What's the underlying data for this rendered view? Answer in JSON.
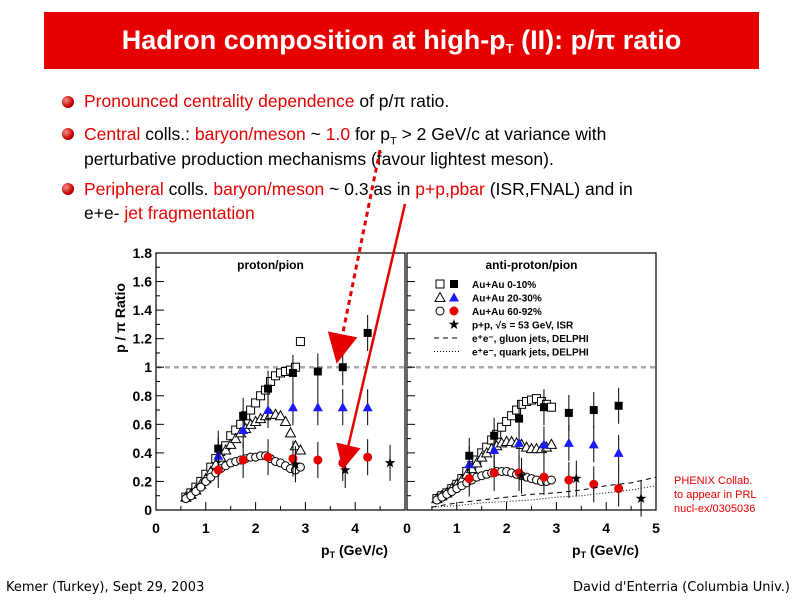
{
  "slide": {
    "title_main": "Hadron composition at high-p",
    "title_sub": "T",
    "title_tail": " (II): p/π ratio",
    "bullets": [
      {
        "parts": [
          {
            "t": "Pronounced centrality dependence",
            "red": true
          },
          {
            "t": " of p/π ratio.",
            "red": false
          }
        ]
      },
      {
        "parts": [
          {
            "t": "Central",
            "red": true
          },
          {
            "t": " colls.: ",
            "red": false
          },
          {
            "t": "baryon/meson",
            "red": true
          },
          {
            "t": " ~ ",
            "red": false
          },
          {
            "t": "1.0",
            "red": true
          },
          {
            "t": " for p",
            "red": false
          },
          {
            "t": "T",
            "red": false,
            "sub": true
          },
          {
            "t": " > 2 GeV/c at variance with",
            "red": false
          }
        ],
        "line2": "perturbative production mechanisms (favour lightest meson)."
      },
      {
        "parts": [
          {
            "t": "Peripheral",
            "red": true
          },
          {
            "t": " colls. ",
            "red": false
          },
          {
            "t": "baryon/meson",
            "red": true
          },
          {
            "t": " ~ 0.3  as in ",
            "red": false
          },
          {
            "t": "p+p,pbar",
            "red": true
          },
          {
            "t": " (ISR,FNAL) and in",
            "red": false
          }
        ],
        "line2_parts": [
          {
            "t": "e+e- ",
            "red": false
          },
          {
            "t": "jet fragmentation",
            "red": true
          }
        ]
      }
    ],
    "footer_left": "Kemer (Turkey), Sept 29, 2003",
    "footer_right": "David d'Enterria (Columbia Univ.)",
    "citation": [
      "PHENIX Collab.",
      "to appear in PRL",
      "nucl-ex/0305036"
    ]
  },
  "colors": {
    "title_bg": "#e60000",
    "accent": "#e60000",
    "cent0_10": "#000000",
    "cent20_30": "#1a1aff",
    "cent60_92": "#e60000",
    "isr": "#000000"
  },
  "chart_data": [
    {
      "type": "scatter",
      "title": "proton/pion",
      "ylabel": "p / π  Ratio",
      "xlabel": "pT (GeV/c)",
      "xlim": [
        0,
        5
      ],
      "ylim": [
        0,
        1.8
      ],
      "xticks": [
        "0",
        "1",
        "2",
        "3",
        "4"
      ],
      "yticks": [
        "0",
        "0.2",
        "0.4",
        "0.6",
        "0.8",
        "1",
        "1.2",
        "1.4",
        "1.6",
        "1.8"
      ],
      "reference_line": 1.0,
      "series": [
        {
          "name": "Au+Au 0-10% (open)",
          "marker": "open-square",
          "color": "#000000",
          "x": [
            0.6,
            0.7,
            0.8,
            0.9,
            1.0,
            1.1,
            1.2,
            1.3,
            1.4,
            1.5,
            1.6,
            1.7,
            1.8,
            1.9,
            2.0,
            2.1,
            2.2,
            2.3,
            2.4,
            2.5,
            2.6,
            2.7,
            2.8,
            2.9
          ],
          "y": [
            0.09,
            0.12,
            0.16,
            0.2,
            0.25,
            0.3,
            0.36,
            0.41,
            0.45,
            0.52,
            0.56,
            0.6,
            0.66,
            0.7,
            0.75,
            0.8,
            0.84,
            0.9,
            0.94,
            0.96,
            0.97,
            0.98,
            1.0,
            1.18
          ]
        },
        {
          "name": "Au+Au 0-10% (filled)",
          "marker": "filled-square",
          "color": "#000000",
          "x": [
            1.25,
            1.75,
            2.25,
            2.75,
            3.25,
            3.75,
            4.25
          ],
          "y": [
            0.43,
            0.66,
            0.85,
            0.96,
            0.97,
            1.0,
            1.24
          ]
        },
        {
          "name": "Au+Au 20-30% (open)",
          "marker": "open-triangle",
          "color": "#000000",
          "x": [
            0.6,
            0.7,
            0.8,
            0.9,
            1.0,
            1.1,
            1.2,
            1.3,
            1.4,
            1.5,
            1.6,
            1.7,
            1.8,
            1.9,
            2.0,
            2.1,
            2.2,
            2.3,
            2.4,
            2.5,
            2.6,
            2.7,
            2.8,
            2.9
          ],
          "y": [
            0.09,
            0.11,
            0.14,
            0.18,
            0.22,
            0.27,
            0.32,
            0.37,
            0.42,
            0.46,
            0.5,
            0.54,
            0.57,
            0.6,
            0.62,
            0.64,
            0.66,
            0.67,
            0.67,
            0.66,
            0.62,
            0.54,
            0.45,
            0.42
          ]
        },
        {
          "name": "Au+Au 20-30% (filled)",
          "marker": "filled-triangle",
          "color": "#1a1aff",
          "x": [
            1.25,
            1.75,
            2.25,
            2.75,
            3.25,
            3.75,
            4.25
          ],
          "y": [
            0.38,
            0.56,
            0.7,
            0.72,
            0.72,
            0.72,
            0.72
          ]
        },
        {
          "name": "Au+Au 60-92% (open)",
          "marker": "open-circle",
          "color": "#000000",
          "x": [
            0.6,
            0.7,
            0.8,
            0.9,
            1.0,
            1.1,
            1.2,
            1.3,
            1.4,
            1.5,
            1.6,
            1.7,
            1.8,
            1.9,
            2.0,
            2.1,
            2.2,
            2.3,
            2.4,
            2.5,
            2.6,
            2.7,
            2.8,
            2.9
          ],
          "y": [
            0.08,
            0.1,
            0.13,
            0.16,
            0.2,
            0.23,
            0.26,
            0.29,
            0.31,
            0.33,
            0.34,
            0.35,
            0.36,
            0.37,
            0.37,
            0.38,
            0.38,
            0.36,
            0.34,
            0.33,
            0.31,
            0.29,
            0.28,
            0.3
          ]
        },
        {
          "name": "Au+Au 60-92% (filled)",
          "marker": "filled-circle",
          "color": "#e60000",
          "x": [
            1.25,
            1.75,
            2.25,
            2.75,
            3.25,
            3.75,
            4.25
          ],
          "y": [
            0.28,
            0.35,
            0.37,
            0.36,
            0.35,
            0.33,
            0.37
          ]
        },
        {
          "name": "p+p ISR",
          "marker": "star",
          "color": "#000000",
          "x": [
            2.8,
            3.8,
            4.7
          ],
          "y": [
            0.32,
            0.28,
            0.33
          ]
        }
      ]
    },
    {
      "type": "scatter",
      "title": "anti-proton/pion",
      "xlabel": "pT (GeV/c)",
      "xlim": [
        0,
        5
      ],
      "ylim": [
        0,
        1.8
      ],
      "xticks": [
        "0",
        "1",
        "2",
        "3",
        "4",
        "5"
      ],
      "reference_line": 1.0,
      "legend": [
        {
          "label": "Au+Au 0-10%",
          "markers": [
            "open-square",
            "filled-square"
          ]
        },
        {
          "label": "Au+Au 20-30%",
          "markers": [
            "open-triangle",
            "filled-triangle"
          ]
        },
        {
          "label": "Au+Au 60-92%",
          "markers": [
            "open-circle",
            "filled-circle"
          ]
        },
        {
          "label": "p+p, √s = 53 GeV, ISR",
          "markers": [
            "star"
          ]
        },
        {
          "label": "e⁺e⁻, gluon jets, DELPHI",
          "markers": [
            "dash"
          ]
        },
        {
          "label": "e⁺e⁻, quark jets, DELPHI",
          "markers": [
            "dot"
          ]
        }
      ],
      "series": [
        {
          "name": "Au+Au 0-10% (open)",
          "marker": "open-square",
          "color": "#000000",
          "x": [
            0.6,
            0.7,
            0.8,
            0.9,
            1.0,
            1.1,
            1.2,
            1.3,
            1.4,
            1.5,
            1.6,
            1.7,
            1.8,
            1.9,
            2.0,
            2.1,
            2.2,
            2.3,
            2.4,
            2.5,
            2.6,
            2.7,
            2.8,
            2.9
          ],
          "y": [
            0.08,
            0.1,
            0.12,
            0.15,
            0.18,
            0.22,
            0.27,
            0.31,
            0.35,
            0.4,
            0.44,
            0.49,
            0.53,
            0.58,
            0.62,
            0.66,
            0.7,
            0.74,
            0.76,
            0.77,
            0.78,
            0.76,
            0.74,
            0.72
          ]
        },
        {
          "name": "Au+Au 0-10% (filled)",
          "marker": "filled-square",
          "color": "#000000",
          "x": [
            1.25,
            1.75,
            2.25,
            2.75,
            3.25,
            3.75,
            4.25
          ],
          "y": [
            0.38,
            0.52,
            0.64,
            0.72,
            0.68,
            0.7,
            0.73
          ]
        },
        {
          "name": "Au+Au 20-30% (open)",
          "marker": "open-triangle",
          "color": "#000000",
          "x": [
            0.6,
            0.7,
            0.8,
            0.9,
            1.0,
            1.1,
            1.2,
            1.3,
            1.4,
            1.5,
            1.6,
            1.7,
            1.8,
            1.9,
            2.0,
            2.1,
            2.2,
            2.3,
            2.4,
            2.5,
            2.6,
            2.7,
            2.8,
            2.9
          ],
          "y": [
            0.08,
            0.1,
            0.12,
            0.15,
            0.18,
            0.21,
            0.25,
            0.29,
            0.33,
            0.37,
            0.4,
            0.43,
            0.45,
            0.47,
            0.48,
            0.48,
            0.47,
            0.46,
            0.44,
            0.43,
            0.43,
            0.43,
            0.44,
            0.46
          ]
        },
        {
          "name": "Au+Au 20-30% (filled)",
          "marker": "filled-triangle",
          "color": "#1a1aff",
          "x": [
            1.25,
            1.75,
            2.25,
            2.75,
            3.25,
            3.75,
            4.25
          ],
          "y": [
            0.32,
            0.42,
            0.47,
            0.46,
            0.47,
            0.46,
            0.4
          ]
        },
        {
          "name": "Au+Au 60-92% (open)",
          "marker": "open-circle",
          "color": "#000000",
          "x": [
            0.6,
            0.7,
            0.8,
            0.9,
            1.0,
            1.1,
            1.2,
            1.3,
            1.4,
            1.5,
            1.6,
            1.7,
            1.8,
            1.9,
            2.0,
            2.1,
            2.2,
            2.3,
            2.4,
            2.5,
            2.6,
            2.7,
            2.8,
            2.9
          ],
          "y": [
            0.07,
            0.09,
            0.11,
            0.13,
            0.15,
            0.17,
            0.19,
            0.21,
            0.23,
            0.24,
            0.25,
            0.26,
            0.27,
            0.27,
            0.27,
            0.26,
            0.25,
            0.24,
            0.23,
            0.22,
            0.21,
            0.2,
            0.2,
            0.21
          ]
        },
        {
          "name": "Au+Au 60-92% (filled)",
          "marker": "filled-circle",
          "color": "#e60000",
          "x": [
            1.25,
            1.75,
            2.25,
            2.75,
            3.25,
            3.75,
            4.25
          ],
          "y": [
            0.22,
            0.26,
            0.26,
            0.23,
            0.21,
            0.18,
            0.15
          ]
        },
        {
          "name": "p+p ISR",
          "marker": "star",
          "color": "#000000",
          "x": [
            2.3,
            3.4,
            4.7
          ],
          "y": [
            0.24,
            0.22,
            0.08
          ]
        },
        {
          "name": "e+e- gluon jets",
          "marker": "dash",
          "color": "#000000",
          "x": [
            0.5,
            1,
            1.5,
            2,
            2.5,
            3,
            3.5,
            4,
            4.5,
            5
          ],
          "y": [
            0.02,
            0.05,
            0.07,
            0.09,
            0.11,
            0.12,
            0.14,
            0.17,
            0.19,
            0.23
          ]
        },
        {
          "name": "e+e- quark jets",
          "marker": "dot",
          "color": "#000000",
          "x": [
            0.5,
            1,
            1.5,
            2,
            2.5,
            3,
            3.5,
            4,
            4.5,
            5
          ],
          "y": [
            0.02,
            0.03,
            0.05,
            0.06,
            0.07,
            0.09,
            0.1,
            0.12,
            0.14,
            0.17
          ]
        }
      ]
    }
  ]
}
